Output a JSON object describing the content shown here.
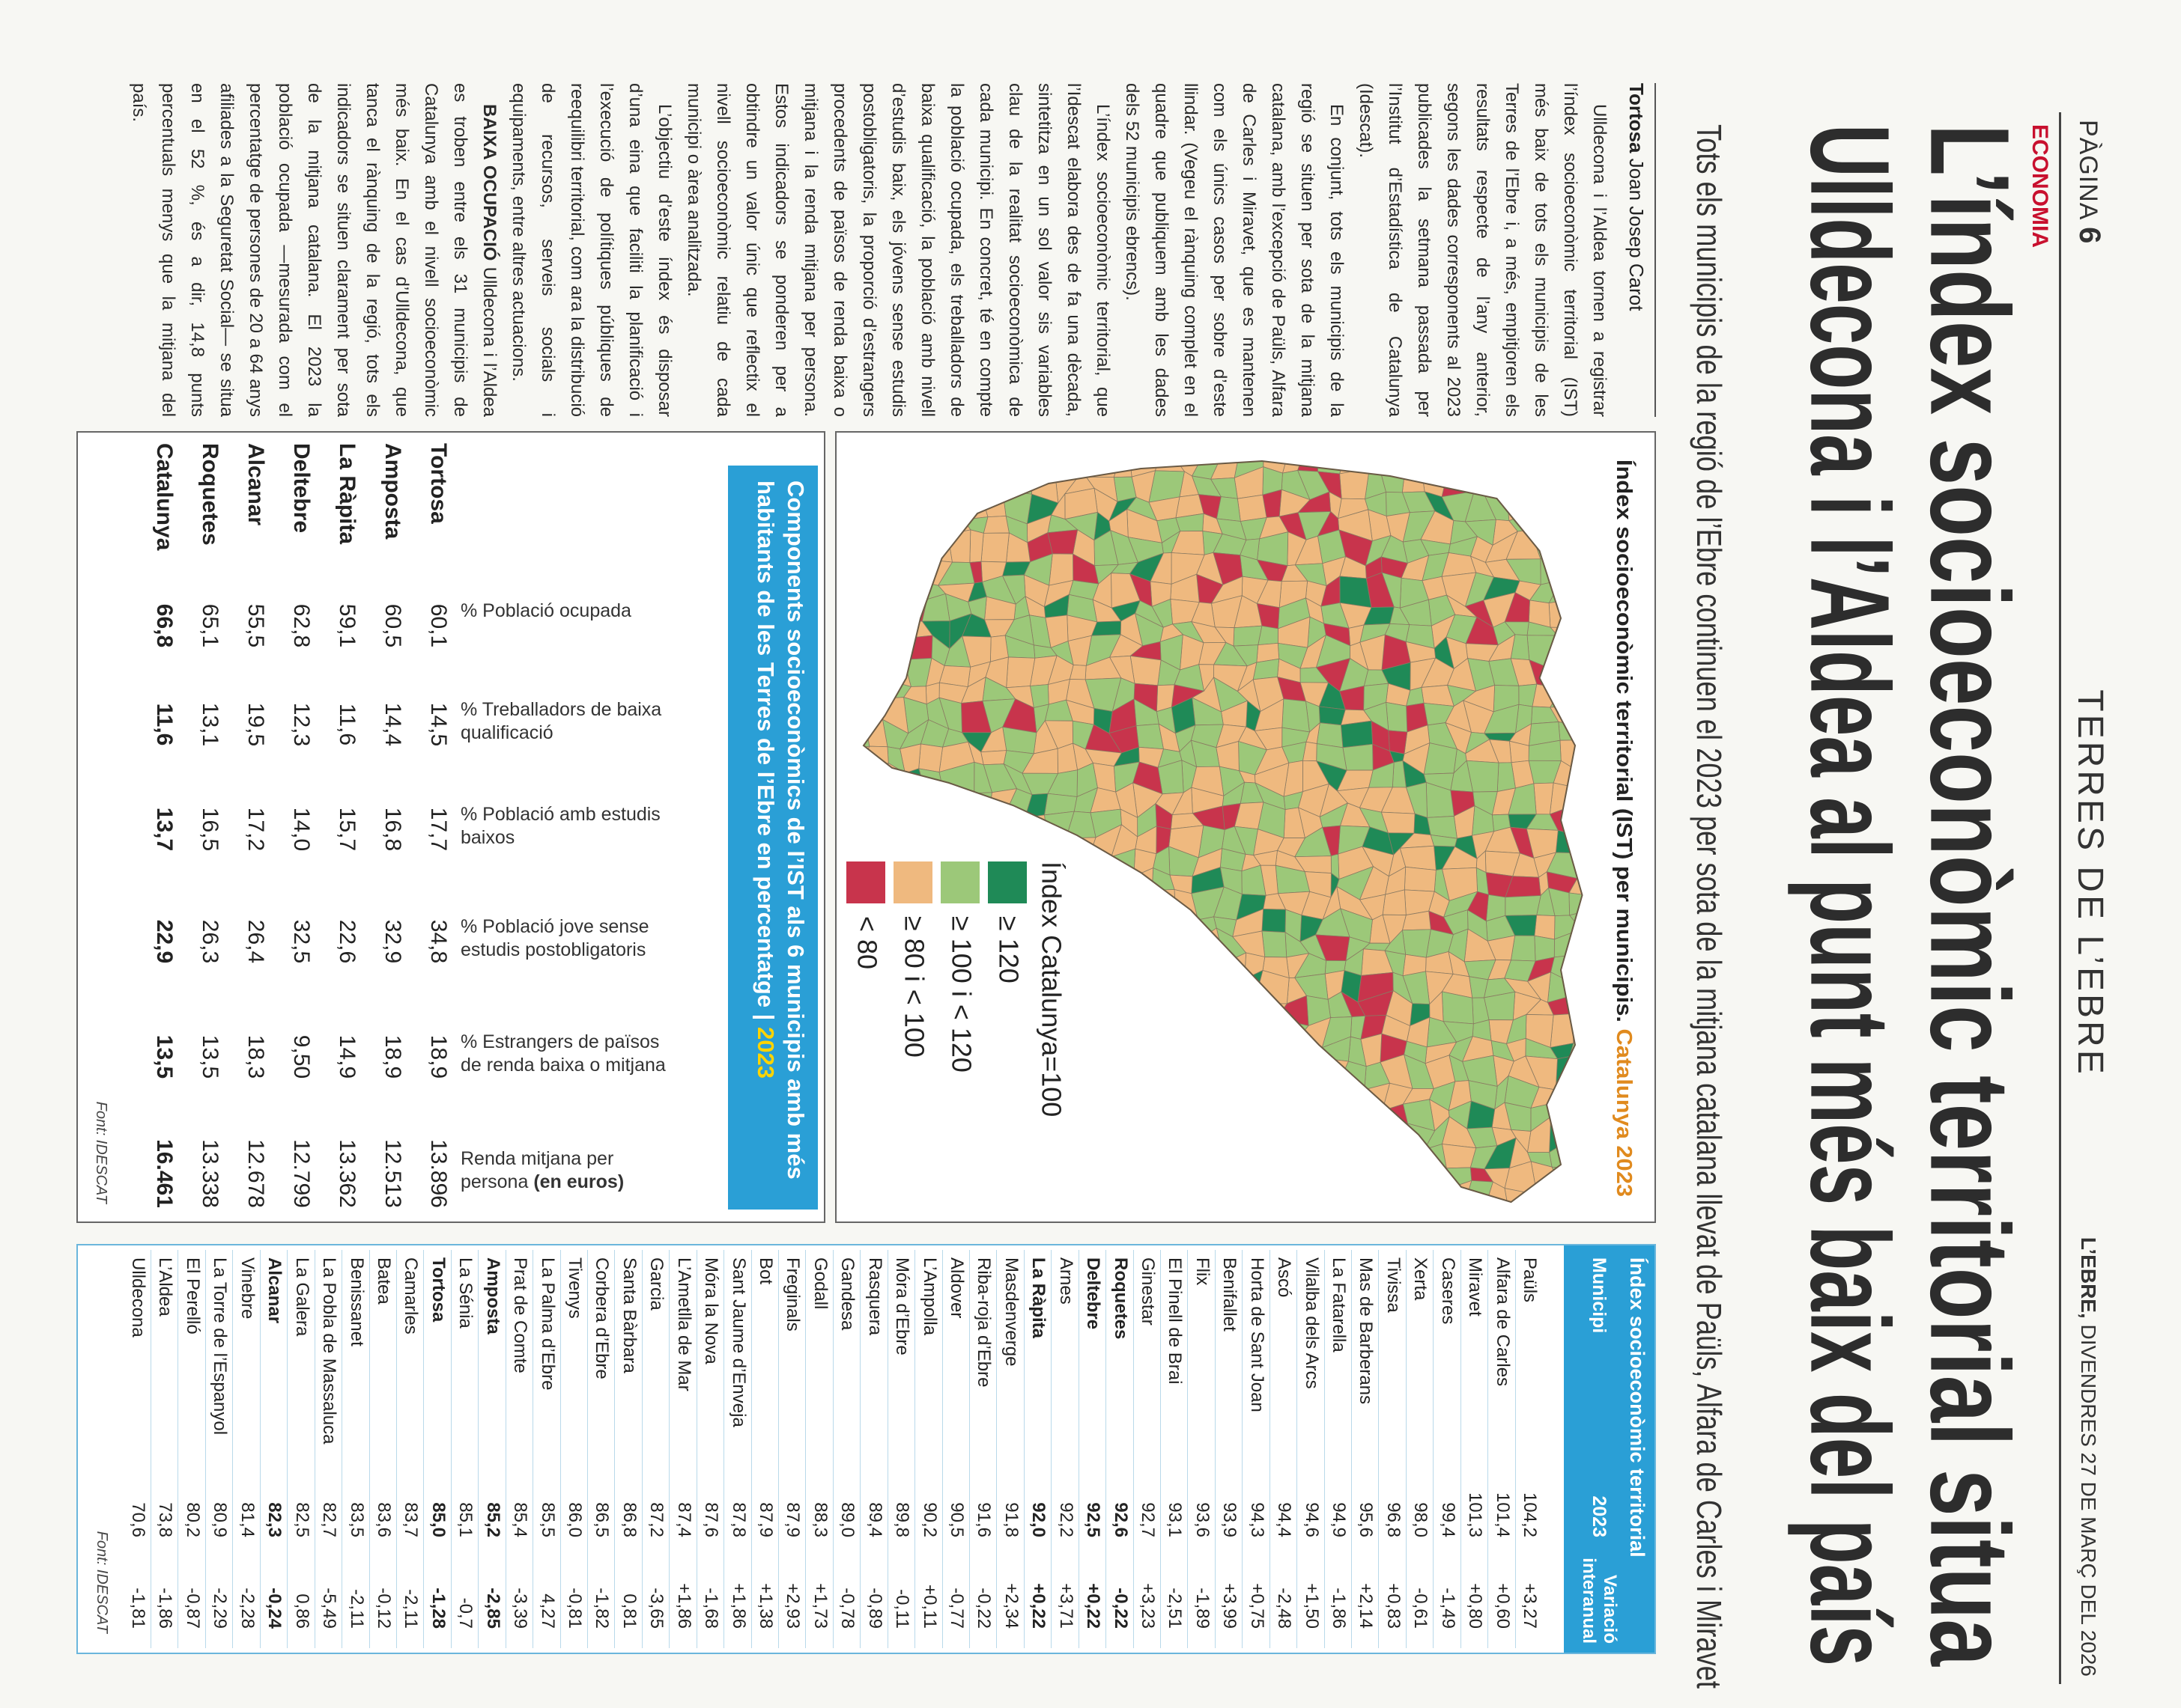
{
  "header": {
    "page_label": "PÀGINA",
    "page_number": "6",
    "section_name": "TERRES DE L’EBRE",
    "paper": "L’EBRE,",
    "date": "DIVENDRES 27 DE MARÇ DEL 2026"
  },
  "section": "ECONOMIA",
  "title": [
    "L’índex socioeconòmic territorial situa",
    "Ulldecona i l’Aldea al punt més baix del país"
  ],
  "subtitle": "Tots els municipis de la regió de l’Ebre continuen el 2023 per sota de la mitjana catalana llevat de Paüls, Alfara de Carles i Miravet",
  "article": {
    "byline_place": "Tortosa",
    "byline_author": "Joan Josep Carot",
    "paragraphs": [
      "Ulldecona i l’Aldea tornen a registrar l’índex socioeconòmic territorial (IST) més baix de tots els municipis de les Terres de l’Ebre i, a més, empitjoren els resultats respecte de l’any anterior, segons les dades corresponents al 2023 publicades la setmana passada per l’Institut d’Estadística de Catalunya (Idescat).",
      "En conjunt, tots els municipis de la regió se situen per sota de la mitjana catalana, amb l’excepció de Paüls, Alfara de Carles i Miravet, que es mantenen com els únics casos per sobre d’este llindar. (Vegeu el rànquing complet en el quadre que publiquem amb les dades dels 52 municipis ebrencs).",
      "L’índex socioeconòmic territorial, que l’Idescat elabora des de fa una dècada, sintetitza en un sol valor sis variables clau de la realitat socioeconòmica de cada municipi. En concret, té en compte la població ocupada, els treballadors de baixa qualificació, la població amb nivell d’estudis baix, els jóvens sense estudis postobligatoris, la proporció d’estrangers procedents de països de renda baixa o mitjana i la renda mitjana per persona. Estos indicadors se ponderen per a obtindre un valor únic que reflectix el nivell socioeconòmic relatiu de cada municipi o àrea analitzada.",
      "L’objectiu d’este índex és disposar d’una eina que faciliti la planificació i l’execució de polítiques públiques de reequilibri territorial, com ara la distribució de recursos, serveis socials i equipaments, entre altres actuacions."
    ],
    "lead_paragraph": {
      "lead": "BAIXA OCUPACIÓ",
      "text": "Ulldecona i l’Aldea es troben entre els 31 municipis de Catalunya amb el nivell socioeconòmic més baix. En el cas d’Ulldecona, que tanca el rànquing de la regió, tots els indicadors se situen clarament per sota de la mitjana catalana. El 2023 la població ocupada —mesurada com el percentatge de persones de 20 a 64 anys afiliades a la Seguretat Social— se situa en el 52 %, és a dir, 14,8 punts percentuals menys que la mitjana del país."
    }
  },
  "map": {
    "title": "Índex socioeconòmic territorial (IST) per municipis.",
    "title_highlight": "Catalunya 2023",
    "legend_title": "Índex Catalunya=100",
    "legend": [
      {
        "label": "≥ 120",
        "color": "#1f8a57"
      },
      {
        "label": "≥ 100 i < 120",
        "color": "#9cc879"
      },
      {
        "label": "≥ 80 i < 100",
        "color": "#efb97f"
      },
      {
        "label": "< 80",
        "color": "#c8344c"
      }
    ]
  },
  "components": {
    "title": "Components socioeconòmics de l’IST als 6 municipis amb més habitants de les Terres de l’Ebre en percentatge |",
    "title_year": "2023",
    "columns": [
      {
        "label": "% Població ocupada"
      },
      {
        "label": "% Treballadors de baixa qualificació"
      },
      {
        "label": "% Població amb estudis baixos"
      },
      {
        "label": "% Població jove sense estudis postobligatoris"
      },
      {
        "label": "% Estrangers de països de renda baixa o mitjana"
      },
      {
        "label": "Renda mitjana per persona",
        "unit": "(en euros)"
      }
    ],
    "rows": [
      {
        "name": "Tortosa",
        "values": [
          "60,1",
          "14,5",
          "17,7",
          "34,8",
          "18,9",
          "13.896"
        ]
      },
      {
        "name": "Amposta",
        "values": [
          "60,5",
          "14,4",
          "16,8",
          "32,9",
          "18,9",
          "12.513"
        ]
      },
      {
        "name": "La Ràpita",
        "values": [
          "59,1",
          "11,6",
          "15,7",
          "22,6",
          "14,9",
          "13.362"
        ]
      },
      {
        "name": "Deltebre",
        "values": [
          "62,8",
          "12,3",
          "14,0",
          "32,5",
          "9,50",
          "12.799"
        ]
      },
      {
        "name": "Alcanar",
        "values": [
          "55,5",
          "19,5",
          "17,2",
          "26,4",
          "18,3",
          "12.678"
        ]
      },
      {
        "name": "Roquetes",
        "values": [
          "65,1",
          "13,1",
          "16,5",
          "26,3",
          "13,5",
          "13.338"
        ]
      },
      {
        "name": "Catalunya",
        "values": [
          "66,8",
          "11,6",
          "13,7",
          "22,9",
          "13,5",
          "16.461"
        ],
        "bold": true
      }
    ],
    "source": "Font: IDESCAT"
  },
  "ranking": {
    "title": "Índex socioeconòmic territorial",
    "col_name": "Municipi",
    "col_year": "2023",
    "col_variation": "Variació interanual",
    "rows": [
      {
        "name": "Paüls",
        "ist": "104,2",
        "variation": "+3,27"
      },
      {
        "name": "Alfara de Carles",
        "ist": "101,4",
        "variation": "+0,60"
      },
      {
        "name": "Miravet",
        "ist": "101,3",
        "variation": "+0,80"
      },
      {
        "name": "Caseres",
        "ist": "99,4",
        "variation": "-1,49"
      },
      {
        "name": "Xerta",
        "ist": "98,0",
        "variation": "-0,61"
      },
      {
        "name": "Tivissa",
        "ist": "96,8",
        "variation": "+0,83"
      },
      {
        "name": "Mas de Barberans",
        "ist": "95,6",
        "variation": "+2,14"
      },
      {
        "name": "La Fatarella",
        "ist": "94,9",
        "variation": "-1,86"
      },
      {
        "name": "Vilalba dels Arcs",
        "ist": "94,6",
        "variation": "+1,50"
      },
      {
        "name": "Ascó",
        "ist": "94,4",
        "variation": "-2,48"
      },
      {
        "name": "Horta de Sant Joan",
        "ist": "94,3",
        "variation": "+0,75"
      },
      {
        "name": "Benifallet",
        "ist": "93,9",
        "variation": "+3,99"
      },
      {
        "name": "Flix",
        "ist": "93,6",
        "variation": "-1,89"
      },
      {
        "name": "El Pinell de Brai",
        "ist": "93,1",
        "variation": "-2,51"
      },
      {
        "name": "Ginestar",
        "ist": "92,7",
        "variation": "+3,23"
      },
      {
        "name": "Roquetes",
        "ist": "92,6",
        "variation": "-0,22",
        "bold": true
      },
      {
        "name": "Deltebre",
        "ist": "92,5",
        "variation": "+0,22",
        "bold": true
      },
      {
        "name": "Arnes",
        "ist": "92,2",
        "variation": "+3,71"
      },
      {
        "name": "La Ràpita",
        "ist": "92,0",
        "variation": "+0,22",
        "bold": true
      },
      {
        "name": "Masdenverge",
        "ist": "91,8",
        "variation": "+2,34"
      },
      {
        "name": "Riba-roja d’Ebre",
        "ist": "91,6",
        "variation": "-0,22"
      },
      {
        "name": "Aldover",
        "ist": "90,5",
        "variation": "-0,77"
      },
      {
        "name": "L’Ampolla",
        "ist": "90,2",
        "variation": "+0,11"
      },
      {
        "name": "Móra d’Ebre",
        "ist": "89,8",
        "variation": "-0,11"
      },
      {
        "name": "Rasquera",
        "ist": "89,4",
        "variation": "-0,89"
      },
      {
        "name": "Gandesa",
        "ist": "89,0",
        "variation": "-0,78"
      },
      {
        "name": "Godall",
        "ist": "88,3",
        "variation": "+1,73"
      },
      {
        "name": "Freginals",
        "ist": "87,9",
        "variation": "+2,93"
      },
      {
        "name": "Bot",
        "ist": "87,9",
        "variation": "+1,38"
      },
      {
        "name": "Sant Jaume d’Enveja",
        "ist": "87,8",
        "variation": "+1,86"
      },
      {
        "name": "Móra la Nova",
        "ist": "87,6",
        "variation": "-1,68"
      },
      {
        "name": "L’Ametlla de Mar",
        "ist": "87,4",
        "variation": "+1,86"
      },
      {
        "name": "Garcia",
        "ist": "87,2",
        "variation": "-3,65"
      },
      {
        "name": "Santa Bàrbara",
        "ist": "86,8",
        "variation": "0,81"
      },
      {
        "name": "Corbera d’Ebre",
        "ist": "86,5",
        "variation": "-1,82"
      },
      {
        "name": "Tivenys",
        "ist": "86,0",
        "variation": "-0,81"
      },
      {
        "name": "La Palma d’Ebre",
        "ist": "85,5",
        "variation": "4,27"
      },
      {
        "name": "Prat de Comte",
        "ist": "85,4",
        "variation": "-3,39"
      },
      {
        "name": "Amposta",
        "ist": "85,2",
        "variation": "-2,85",
        "bold": true
      },
      {
        "name": "La Sénia",
        "ist": "85,1",
        "variation": "-0,7"
      },
      {
        "name": "Tortosa",
        "ist": "85,0",
        "variation": "-1,28",
        "bold": true
      },
      {
        "name": "Camarles",
        "ist": "83,7",
        "variation": "-2,11"
      },
      {
        "name": "Batea",
        "ist": "83,6",
        "variation": "-0,12"
      },
      {
        "name": "Benissanet",
        "ist": "83,5",
        "variation": "-2,11"
      },
      {
        "name": "La Pobla de Massaluca",
        "ist": "82,7",
        "variation": "-5,49"
      },
      {
        "name": "La Galera",
        "ist": "82,5",
        "variation": "0,86"
      },
      {
        "name": "Alcanar",
        "ist": "82,3",
        "variation": "-0,24",
        "bold": true
      },
      {
        "name": "Vinebre",
        "ist": "81,4",
        "variation": "-2,28"
      },
      {
        "name": "La Torre de l’Espanyol",
        "ist": "80,9",
        "variation": "-2,29"
      },
      {
        "name": "El Perelló",
        "ist": "80,2",
        "variation": "-0,87"
      },
      {
        "name": "L’Aldea",
        "ist": "73,8",
        "variation": "-1,86"
      },
      {
        "name": "Ulldecona",
        "ist": "70,6",
        "variation": "-1,81"
      }
    ],
    "source": "Font: IDESCAT"
  }
}
